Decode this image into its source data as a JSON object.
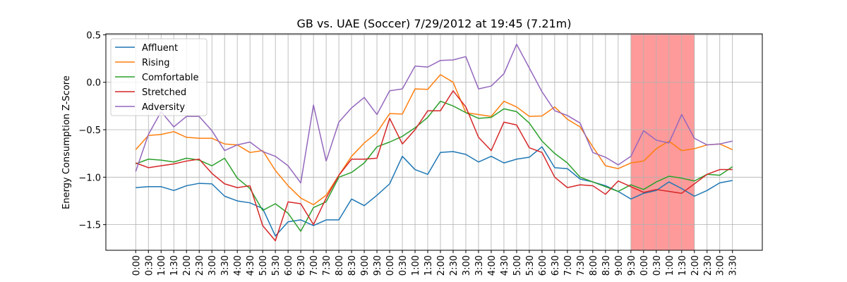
{
  "chart_data": {
    "type": "line",
    "title": "GB vs. UAE (Soccer) 7/29/2012 at 19:45 (7.21m)",
    "y_label": "Energy Consumption Z-Score",
    "categories": [
      "0:00",
      "0:30",
      "1:00",
      "1:30",
      "2:00",
      "2:30",
      "3:00",
      "3:30",
      "4:00",
      "4:30",
      "5:00",
      "5:30",
      "6:00",
      "6:30",
      "7:00",
      "7:30",
      "8:00",
      "8:30",
      "9:00",
      "9:30",
      "0:00",
      "0:30",
      "1:00",
      "1:30",
      "2:00",
      "2:30",
      "3:00",
      "3:30",
      "4:00",
      "4:30",
      "5:00",
      "5:30",
      "6:00",
      "6:30",
      "7:00",
      "7:30",
      "8:00",
      "8:30",
      "9:00",
      "9:30",
      "0:00",
      "0:30",
      "1:00",
      "1:30",
      "2:00",
      "2:30",
      "3:00",
      "3:30"
    ],
    "series": [
      {
        "name": "Affluent",
        "color": "#1f77b4",
        "values": [
          -1.11,
          -1.1,
          -1.1,
          -1.14,
          -1.09,
          -1.065,
          -1.07,
          -1.2,
          -1.25,
          -1.27,
          -1.33,
          -1.62,
          -1.47,
          -1.45,
          -1.51,
          -1.45,
          -1.45,
          -1.23,
          -1.3,
          -1.19,
          -1.07,
          -0.78,
          -0.92,
          -0.97,
          -0.74,
          -0.73,
          -0.76,
          -0.84,
          -0.78,
          -0.85,
          -0.81,
          -0.79,
          -0.68,
          -0.9,
          -0.91,
          -1.02,
          -1.05,
          -1.09,
          -1.15,
          -1.23,
          -1.17,
          -1.14,
          -1.05,
          -1.12,
          -1.2,
          -1.14,
          -1.06,
          -1.035
        ]
      },
      {
        "name": "Rising",
        "color": "#ff7f0e",
        "values": [
          -0.71,
          -0.56,
          -0.55,
          -0.52,
          -0.58,
          -0.59,
          -0.59,
          -0.65,
          -0.66,
          -0.74,
          -0.72,
          -0.93,
          -1.09,
          -1.22,
          -1.29,
          -1.19,
          -0.98,
          -0.78,
          -0.64,
          -0.53,
          -0.33,
          -0.335,
          -0.07,
          -0.075,
          0.08,
          0.0,
          -0.32,
          -0.34,
          -0.36,
          -0.2,
          -0.26,
          -0.36,
          -0.355,
          -0.26,
          -0.39,
          -0.47,
          -0.68,
          -0.88,
          -0.91,
          -0.85,
          -0.83,
          -0.7,
          -0.62,
          -0.72,
          -0.7,
          -0.66,
          -0.65,
          -0.71
        ]
      },
      {
        "name": "Comfortable",
        "color": "#2ca02c",
        "values": [
          -0.86,
          -0.81,
          -0.82,
          -0.84,
          -0.8,
          -0.82,
          -0.88,
          -0.8,
          -1.01,
          -1.12,
          -1.35,
          -1.28,
          -1.38,
          -1.57,
          -1.32,
          -1.26,
          -1.0,
          -0.95,
          -0.85,
          -0.68,
          -0.63,
          -0.57,
          -0.48,
          -0.37,
          -0.2,
          -0.25,
          -0.32,
          -0.38,
          -0.37,
          -0.28,
          -0.31,
          -0.43,
          -0.62,
          -0.75,
          -0.85,
          -1.0,
          -1.05,
          -1.1,
          -1.15,
          -1.08,
          -1.13,
          -1.05,
          -0.99,
          -1.01,
          -1.04,
          -0.97,
          -0.98,
          -0.89
        ]
      },
      {
        "name": "Stretched",
        "color": "#d62728",
        "values": [
          -0.85,
          -0.9,
          -0.88,
          -0.86,
          -0.83,
          -0.81,
          -0.96,
          -1.07,
          -1.11,
          -1.09,
          -1.51,
          -1.67,
          -1.26,
          -1.28,
          -1.5,
          -1.22,
          -0.98,
          -0.81,
          -0.81,
          -0.8,
          -0.38,
          -0.65,
          -0.5,
          -0.3,
          -0.3,
          -0.09,
          -0.26,
          -0.58,
          -0.72,
          -0.42,
          -0.45,
          -0.69,
          -0.74,
          -1.0,
          -1.11,
          -1.08,
          -1.09,
          -1.18,
          -1.04,
          -1.1,
          -1.16,
          -1.13,
          -1.15,
          -1.17,
          -1.07,
          -0.97,
          -0.92,
          -0.92
        ]
      },
      {
        "name": "Adversity",
        "color": "#9467bd",
        "values": [
          -0.94,
          -0.55,
          -0.31,
          -0.47,
          -0.36,
          -0.36,
          -0.51,
          -0.72,
          -0.66,
          -0.63,
          -0.73,
          -0.78,
          -0.88,
          -1.06,
          -0.24,
          -0.83,
          -0.42,
          -0.27,
          -0.16,
          -0.34,
          -0.09,
          -0.07,
          0.17,
          0.16,
          0.23,
          0.235,
          0.27,
          -0.07,
          -0.04,
          0.09,
          0.4,
          0.15,
          -0.1,
          -0.3,
          -0.35,
          -0.43,
          -0.74,
          -0.79,
          -0.87,
          -0.78,
          -0.51,
          -0.61,
          -0.64,
          -0.34,
          -0.59,
          -0.66,
          -0.65,
          -0.62
        ]
      }
    ],
    "ylim": [
      -1.77,
      0.51
    ],
    "yticks": [
      0.5,
      {
        "value": 0.0,
        "label": "0.0"
      },
      {
        "value": -0.5,
        "label": "−0.5"
      },
      {
        "value": -1.0,
        "label": "−1.0"
      },
      {
        "value": -1.5,
        "label": "−1.5"
      }
    ],
    "grid": true,
    "legend": "upper left",
    "shaded_span": [
      39,
      44
    ],
    "shade_color": "#ff9a9a"
  }
}
